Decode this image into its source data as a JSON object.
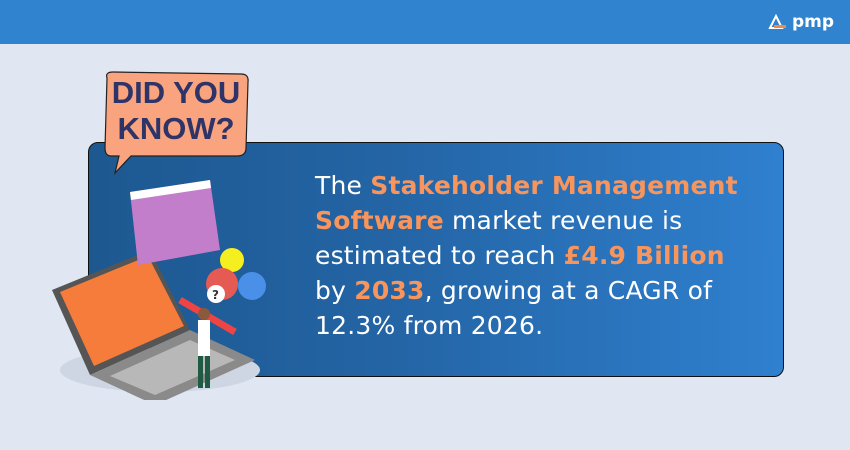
{
  "header": {
    "logo_text": "pmp"
  },
  "callout": {
    "text": "DID YOU KNOW?"
  },
  "message": {
    "part1": "The ",
    "highlight1": "Stakeholder Management Software",
    "part2": " market revenue is estimated to reach ",
    "highlight2": "£4.9 Billion",
    "part3": " by ",
    "highlight3": "2033",
    "part4": ", growing at a CAGR of 12.3% from 2026."
  },
  "colors": {
    "topbar": "#2f83cf",
    "background": "#e1e7f2",
    "highlight": "#f7955d",
    "callout_fill": "#f9a47e",
    "callout_text": "#2e3468"
  }
}
